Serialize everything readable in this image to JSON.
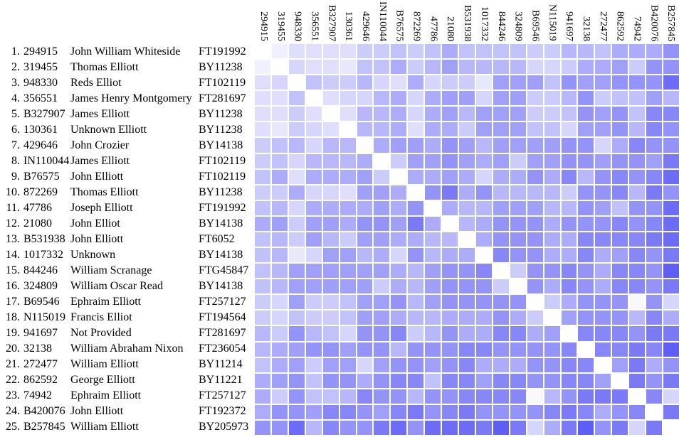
{
  "chart_data": {
    "type": "heatmap",
    "title": "",
    "description": "Pairwise genetic-distance matrix of 25 Y-DNA kits; white diagonal, darker blue-violet = greater distance",
    "legend": "none",
    "grid": "white 2px gaps between cells",
    "value_range": [
      0,
      10
    ],
    "colors": {
      "min": "#ffffff",
      "mid": "#a0a0ee",
      "max": "#5c5cf6"
    },
    "columns": [
      "294915",
      "319455",
      "948330",
      "356551",
      "B327907",
      "130361",
      "429646",
      "IN110044",
      "B76575",
      "872269",
      "47786",
      "21080",
      "B531938",
      "1017332",
      "844246",
      "324809",
      "B69546",
      "N115019",
      "941697",
      "32138",
      "272477",
      "862592",
      "74942",
      "B420076",
      "B257845"
    ],
    "rows": [
      {
        "rank": "1.",
        "kit": "294915",
        "name": "John William Whiteside",
        "snp": "FT191992"
      },
      {
        "rank": "2.",
        "kit": "319455",
        "name": "Thomas Elliott",
        "snp": "BY11238"
      },
      {
        "rank": "3.",
        "kit": "948330",
        "name": "Reds Elliot",
        "snp": "FT102119"
      },
      {
        "rank": "4.",
        "kit": "356551",
        "name": "James Henry Montgomery",
        "snp": "FT281697"
      },
      {
        "rank": "5.",
        "kit": "B327907",
        "name": "James Elliott",
        "snp": "BY11238"
      },
      {
        "rank": "6.",
        "kit": "130361",
        "name": "Unknown Elliott",
        "snp": "BY11238"
      },
      {
        "rank": "7.",
        "kit": "429646",
        "name": "John Crozier",
        "snp": "BY14138"
      },
      {
        "rank": "8.",
        "kit": "IN110044",
        "name": "James Elliott",
        "snp": "FT102119"
      },
      {
        "rank": "9.",
        "kit": "B76575",
        "name": "John Elliott",
        "snp": "FT102119"
      },
      {
        "rank": "10.",
        "kit": "872269",
        "name": "Thomas Elliott",
        "snp": "BY11238"
      },
      {
        "rank": "11.",
        "kit": "47786",
        "name": "Joseph Elliott",
        "snp": "FT191992"
      },
      {
        "rank": "12.",
        "kit": "21080",
        "name": "John Elliot",
        "snp": "BY14138"
      },
      {
        "rank": "13.",
        "kit": "B531938",
        "name": "John Elliott",
        "snp": "FT6052"
      },
      {
        "rank": "14.",
        "kit": "1017332",
        "name": "Unknown",
        "snp": "BY14138"
      },
      {
        "rank": "15.",
        "kit": "844246",
        "name": "William Scranage",
        "snp": "FTG45847"
      },
      {
        "rank": "16.",
        "kit": "324809",
        "name": "William Oscar Read",
        "snp": "BY14138"
      },
      {
        "rank": "17.",
        "kit": "B69546",
        "name": "Ephraim Elliott",
        "snp": "FT257127"
      },
      {
        "rank": "18.",
        "kit": "N115019",
        "name": "Francis Elliot",
        "snp": "FT194564"
      },
      {
        "rank": "19.",
        "kit": "941697",
        "name": "Not Provided",
        "snp": "FT281697"
      },
      {
        "rank": "20.",
        "kit": "32138",
        "name": "William Abraham Nixon",
        "snp": "FT236054"
      },
      {
        "rank": "21.",
        "kit": "272477",
        "name": "William Elliott",
        "snp": "BY11214"
      },
      {
        "rank": "22.",
        "kit": "862592",
        "name": "George Elliott",
        "snp": "BY11221"
      },
      {
        "rank": "23.",
        "kit": "74942",
        "name": "Ephraim Elliott",
        "snp": "FT257127"
      },
      {
        "rank": "24.",
        "kit": "B420076",
        "name": "John Elliott",
        "snp": "FT192372"
      },
      {
        "rank": "25.",
        "kit": "B257845",
        "name": "William Elliott",
        "snp": "BY205973"
      }
    ],
    "values": [
      [
        0,
        1,
        2,
        2,
        2,
        2,
        3,
        3,
        3.5,
        3,
        3.5,
        4.5,
        3.5,
        3.5,
        3.5,
        3.5,
        3,
        3,
        4,
        4,
        3.5,
        4.5,
        4.5,
        4.5,
        5.5
      ],
      [
        1,
        0,
        2.5,
        2,
        2,
        1.5,
        3.5,
        3.5,
        4.5,
        3,
        4,
        5,
        4,
        4,
        4,
        4,
        2.5,
        2.5,
        3,
        4.5,
        4.5,
        5,
        3,
        5.5,
        5.5
      ],
      [
        2,
        2.5,
        0,
        3.5,
        3,
        3,
        4,
        2.5,
        2,
        4.5,
        2.5,
        3,
        3,
        1.5,
        5,
        5,
        5,
        3.5,
        5.5,
        5,
        5,
        5.5,
        5.5,
        5.5,
        7
      ],
      [
        2,
        2,
        3.5,
        0,
        2,
        2.5,
        2.5,
        4,
        4.5,
        2.5,
        4.5,
        5,
        5,
        2.5,
        5,
        5,
        3,
        3,
        4,
        5.5,
        3,
        3.5,
        3.5,
        5,
        4
      ],
      [
        2,
        2,
        3,
        2,
        0,
        2,
        4,
        4,
        4.5,
        2.5,
        4.5,
        5,
        4,
        5,
        5,
        5,
        3,
        3,
        3.5,
        5.5,
        5,
        5.5,
        3.5,
        6,
        6
      ],
      [
        2,
        1.5,
        3,
        2.5,
        2,
        0,
        4,
        4,
        4.5,
        2,
        4.5,
        4.5,
        3,
        5,
        5,
        5,
        3.5,
        3.5,
        2.5,
        5,
        5,
        5.5,
        4,
        6,
        5.5
      ],
      [
        3,
        3.5,
        4,
        2.5,
        4,
        4,
        0,
        4.5,
        5,
        5,
        4.5,
        5.5,
        5,
        4,
        5,
        5,
        5,
        5,
        5.5,
        5.5,
        2.5,
        4.5,
        6,
        5.5,
        5.5
      ],
      [
        3,
        3.5,
        2.5,
        4,
        4,
        4,
        4.5,
        0,
        3,
        5,
        5,
        5.5,
        5,
        4.5,
        5,
        3,
        5,
        5,
        5.5,
        5.5,
        5,
        5.5,
        5.5,
        5,
        6.5
      ],
      [
        3.5,
        4.5,
        2,
        4.5,
        4.5,
        4.5,
        5,
        3,
        0,
        4.5,
        4.5,
        5,
        4.5,
        2.5,
        4.5,
        4.5,
        5.5,
        4.5,
        6,
        4,
        5.5,
        6,
        5.5,
        6,
        7
      ],
      [
        3,
        3,
        4.5,
        2.5,
        2.5,
        2,
        5,
        5,
        4.5,
        0,
        5.5,
        6.5,
        4.5,
        5.5,
        4,
        4,
        4,
        4,
        3,
        5.5,
        5.5,
        6,
        4,
        6.5,
        5.5
      ],
      [
        3.5,
        4,
        2.5,
        4.5,
        4.5,
        4.5,
        4.5,
        5,
        4.5,
        5.5,
        0,
        4.5,
        4,
        4,
        5,
        5,
        5,
        4,
        4,
        5.5,
        5,
        3.5,
        5.5,
        5.5,
        7
      ],
      [
        4.5,
        5,
        3,
        5,
        5,
        4.5,
        5.5,
        5.5,
        5,
        6.5,
        4.5,
        0,
        4,
        4.5,
        5.5,
        5.5,
        5.5,
        4.5,
        5.5,
        5.5,
        5.5,
        6,
        5.5,
        6,
        7
      ],
      [
        3.5,
        4,
        3,
        5,
        4,
        3,
        5,
        5,
        4.5,
        4.5,
        4,
        4,
        0,
        4.5,
        5.5,
        5.5,
        5.5,
        4.5,
        4.5,
        6,
        6,
        6,
        6,
        6.5,
        7
      ],
      [
        3.5,
        4,
        1.5,
        2.5,
        5,
        5,
        4,
        4.5,
        2.5,
        5.5,
        4,
        4.5,
        4.5,
        0,
        6,
        5.5,
        5.5,
        4.5,
        4.5,
        6,
        4.5,
        5,
        6,
        5.5,
        6.5
      ],
      [
        3.5,
        4,
        5,
        5,
        5,
        5,
        5,
        5,
        4.5,
        4,
        5,
        5.5,
        5.5,
        6,
        0,
        3,
        5.5,
        5.5,
        6,
        5.5,
        4.5,
        6,
        6,
        5.5,
        7.5
      ],
      [
        3.5,
        4,
        5,
        5,
        5,
        5,
        5,
        3,
        4.5,
        4,
        5,
        5.5,
        5.5,
        5.5,
        3,
        0,
        5.5,
        4.5,
        6,
        5.5,
        4.5,
        6,
        6,
        5.5,
        6.5
      ],
      [
        3,
        2.5,
        5,
        3,
        3,
        3.5,
        5,
        5,
        5.5,
        4,
        5,
        5.5,
        5.5,
        5.5,
        5.5,
        5.5,
        0,
        3,
        4.5,
        5.5,
        5.5,
        5.5,
        0.5,
        5.5,
        2.5
      ],
      [
        3,
        2.5,
        3.5,
        3,
        3,
        3.5,
        5,
        5,
        4.5,
        4,
        4,
        4.5,
        4.5,
        4.5,
        5.5,
        4.5,
        3,
        0,
        5,
        5.5,
        5.5,
        5.5,
        4,
        6,
        4.5
      ],
      [
        4,
        3,
        5.5,
        4,
        3.5,
        2.5,
        5.5,
        5.5,
        6,
        3,
        4,
        5.5,
        4.5,
        4.5,
        6,
        6,
        4.5,
        5,
        0,
        6,
        6,
        6,
        5.5,
        6.5,
        6.5
      ],
      [
        4,
        4.5,
        5,
        5.5,
        5.5,
        5,
        5.5,
        5.5,
        4,
        5.5,
        5.5,
        5.5,
        6,
        6,
        5.5,
        5.5,
        5.5,
        5.5,
        6,
        0,
        6,
        6,
        6.5,
        6,
        7.5
      ],
      [
        3.5,
        4.5,
        5,
        3,
        5,
        5,
        2.5,
        5,
        5.5,
        5.5,
        5,
        5.5,
        6,
        4.5,
        4.5,
        4.5,
        5.5,
        5.5,
        6,
        6,
        0,
        5,
        6.5,
        4.5,
        5.5
      ],
      [
        4.5,
        5,
        5.5,
        3.5,
        5.5,
        5.5,
        4.5,
        5.5,
        6,
        6,
        3.5,
        6,
        6,
        5,
        6,
        6,
        5.5,
        5.5,
        6,
        6,
        5,
        0,
        6.5,
        5.5,
        6.5
      ],
      [
        4.5,
        3,
        5.5,
        3.5,
        3.5,
        4,
        6,
        5.5,
        5.5,
        4,
        5.5,
        5.5,
        6,
        6,
        6,
        6,
        0.5,
        4,
        5.5,
        6.5,
        6.5,
        6.5,
        0,
        6,
        2.5
      ],
      [
        4.5,
        5.5,
        5.5,
        5,
        6,
        6,
        5.5,
        5,
        6,
        6.5,
        5.5,
        6,
        6.5,
        5.5,
        5.5,
        5.5,
        5.5,
        6,
        6.5,
        6,
        4.5,
        5.5,
        6,
        0,
        6.5
      ],
      [
        5.5,
        5.5,
        7,
        4,
        6,
        5.5,
        5.5,
        6.5,
        7,
        5.5,
        7,
        7,
        7,
        6.5,
        7.5,
        6.5,
        2.5,
        4.5,
        6.5,
        7.5,
        5.5,
        6.5,
        2.5,
        6.5,
        0
      ]
    ]
  }
}
